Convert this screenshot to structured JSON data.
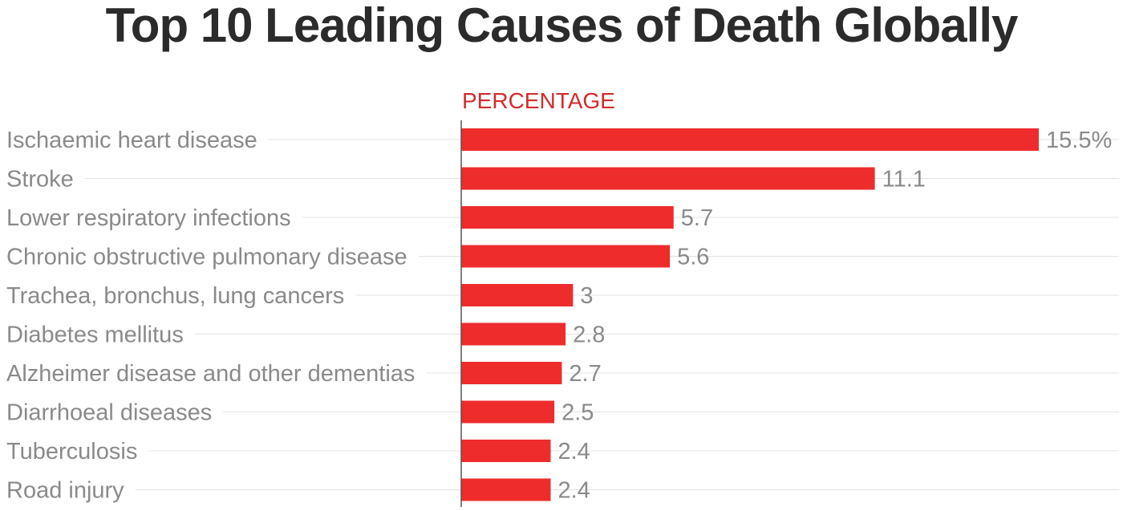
{
  "chart_data": {
    "type": "bar",
    "orientation": "horizontal",
    "title": "Top 10 Leading Causes of Death Globally",
    "value_header": "PERCENTAGE",
    "categories": [
      "Ischaemic heart disease",
      "Stroke",
      "Lower respiratory infections",
      "Chronic obstructive pulmonary disease",
      "Trachea, bronchus, lung cancers",
      "Diabetes mellitus",
      "Alzheimer disease and other dementias",
      "Diarrhoeal diseases",
      "Tuberculosis",
      "Road injury"
    ],
    "values": [
      15.5,
      11.1,
      5.7,
      5.6,
      3,
      2.8,
      2.7,
      2.5,
      2.4,
      2.4
    ],
    "value_labels": [
      "15.5%",
      "11.1",
      "5.7",
      "5.6",
      "3",
      "2.8",
      "2.7",
      "2.5",
      "2.4",
      "2.4"
    ],
    "xlim": [
      0,
      15.5
    ],
    "grid": true,
    "legend": "none",
    "bar_color": "#ee2c2c"
  }
}
